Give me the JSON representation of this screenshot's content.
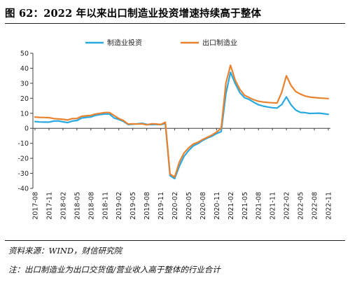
{
  "figure": {
    "title": "图 62：2022 年以来出口制造业投资增速持续高于整体",
    "source": "资料来源：WIND，财信研究院",
    "note": "注：出口制造业为出口交货值/营业收入高于整体的行业合计"
  },
  "chart_data": {
    "type": "line",
    "title": "",
    "xlabel": "",
    "ylabel": "",
    "ylim": [
      -40,
      50
    ],
    "yticks": [
      -40,
      -30,
      -20,
      -10,
      0,
      10,
      20,
      30,
      40,
      50
    ],
    "grid": false,
    "legend_position": "top-center",
    "x": [
      "2017-08",
      "2017-09",
      "2017-10",
      "2017-11",
      "2017-12",
      "2018-01",
      "2018-02",
      "2018-03",
      "2018-04",
      "2018-05",
      "2018-06",
      "2018-07",
      "2018-08",
      "2018-09",
      "2018-10",
      "2018-11",
      "2018-12",
      "2019-01",
      "2019-02",
      "2019-03",
      "2019-04",
      "2019-05",
      "2019-06",
      "2019-07",
      "2019-08",
      "2019-09",
      "2019-10",
      "2019-11",
      "2019-12",
      "2020-01",
      "2020-02",
      "2020-03",
      "2020-04",
      "2020-05",
      "2020-06",
      "2020-07",
      "2020-08",
      "2020-09",
      "2020-10",
      "2020-11",
      "2020-12",
      "2021-01",
      "2021-02",
      "2021-03",
      "2021-04",
      "2021-05",
      "2021-06",
      "2021-07",
      "2021-08",
      "2021-09",
      "2021-10",
      "2021-11",
      "2021-12",
      "2022-01",
      "2022-02",
      "2022-03",
      "2022-04",
      "2022-05",
      "2022-06",
      "2022-07",
      "2022-08",
      "2022-09",
      "2022-10",
      "2022-11"
    ],
    "x_tick_labels": [
      "2017-08",
      "2017-11",
      "2018-02",
      "2018-05",
      "2018-08",
      "2018-11",
      "2019-02",
      "2019-05",
      "2019-08",
      "2019-11",
      "2020-02",
      "2020-05",
      "2020-08",
      "2020-11",
      "2021-02",
      "2021-05",
      "2021-08",
      "2021-11",
      "2022-02",
      "2022-05",
      "2022-08",
      "2022-11"
    ],
    "series": [
      {
        "name": "制造业投资",
        "color": "#29a9e0",
        "values": [
          4.5,
          4.2,
          4.1,
          4.1,
          4.8,
          4.9,
          4.3,
          3.8,
          4.8,
          5.2,
          6.8,
          7.3,
          7.5,
          8.7,
          9.1,
          9.5,
          9.5,
          6.8,
          5.9,
          4.6,
          2.5,
          2.7,
          3.0,
          3.3,
          2.6,
          2.5,
          2.6,
          2.5,
          3.1,
          -31.5,
          -33.5,
          -25.2,
          -18.8,
          -14.8,
          -11.7,
          -10.2,
          -8.1,
          -6.5,
          -5.3,
          -3.5,
          -2.2,
          23.0,
          37.3,
          29.8,
          23.8,
          20.4,
          19.2,
          17.3,
          15.7,
          14.8,
          14.2,
          13.7,
          13.5,
          15.8,
          20.9,
          15.6,
          12.2,
          10.6,
          10.4,
          9.9,
          10.0,
          10.1,
          9.7,
          9.3
        ]
      },
      {
        "name": "出口制造业",
        "color": "#e8822f",
        "values": [
          7.5,
          7.3,
          7.2,
          7.1,
          6.5,
          6.2,
          6.0,
          5.5,
          6.5,
          6.5,
          8.0,
          8.3,
          8.6,
          9.5,
          10.0,
          10.5,
          10.5,
          8.5,
          6.5,
          5.2,
          2.8,
          3.0,
          2.8,
          3.0,
          2.3,
          3.0,
          2.9,
          2.5,
          4.0,
          -30.5,
          -32.5,
          -22.5,
          -16.5,
          -13.0,
          -10.5,
          -9.3,
          -7.5,
          -6.0,
          -4.5,
          -2.5,
          0.0,
          30.0,
          42.0,
          32.0,
          26.0,
          22.0,
          20.5,
          19.0,
          18.0,
          17.5,
          17.2,
          17.0,
          16.8,
          24.0,
          35.0,
          28.5,
          24.5,
          22.8,
          21.5,
          20.8,
          20.5,
          20.2,
          20.0,
          19.8
        ]
      }
    ]
  }
}
